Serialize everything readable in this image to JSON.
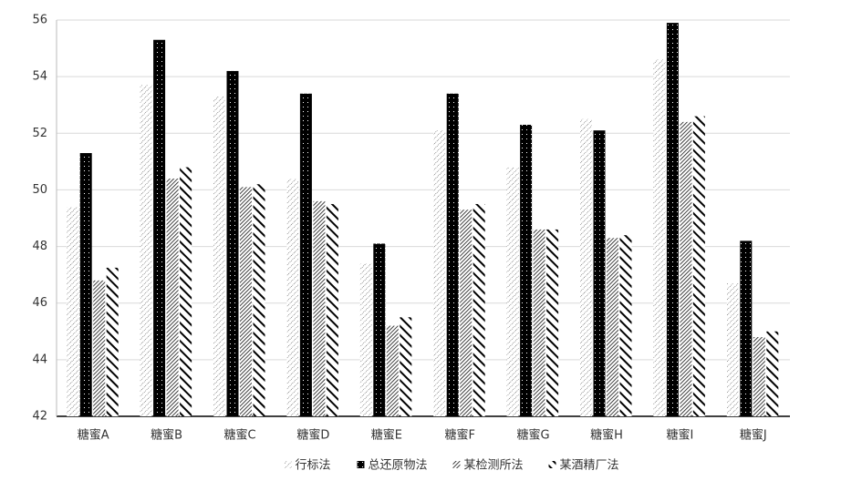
{
  "chart_data": {
    "type": "bar",
    "categories": [
      "糖蜜A",
      "糖蜜B",
      "糖蜜C",
      "糖蜜D",
      "糖蜜E",
      "糖蜜F",
      "糖蜜G",
      "糖蜜H",
      "糖蜜I",
      "糖蜜J"
    ],
    "series": [
      {
        "name": "行标法",
        "values": [
          49.4,
          53.7,
          53.3,
          50.4,
          47.4,
          52.1,
          50.8,
          52.5,
          54.6,
          46.7
        ]
      },
      {
        "name": "总还原物法",
        "values": [
          51.3,
          55.3,
          54.2,
          53.4,
          48.1,
          53.4,
          52.3,
          52.1,
          55.9,
          48.2
        ]
      },
      {
        "name": "某检测所法",
        "values": [
          46.8,
          50.4,
          50.1,
          49.6,
          45.2,
          49.3,
          48.6,
          48.3,
          52.4,
          44.8
        ]
      },
      {
        "name": "某酒精厂法",
        "values": [
          47.25,
          50.8,
          50.2,
          49.5,
          45.5,
          49.5,
          48.6,
          48.4,
          52.6,
          45.0
        ]
      }
    ],
    "ylim": [
      42,
      56
    ],
    "yticks": [
      42,
      44,
      46,
      48,
      50,
      52,
      54,
      56
    ],
    "grid": true,
    "legend": "bottom"
  }
}
